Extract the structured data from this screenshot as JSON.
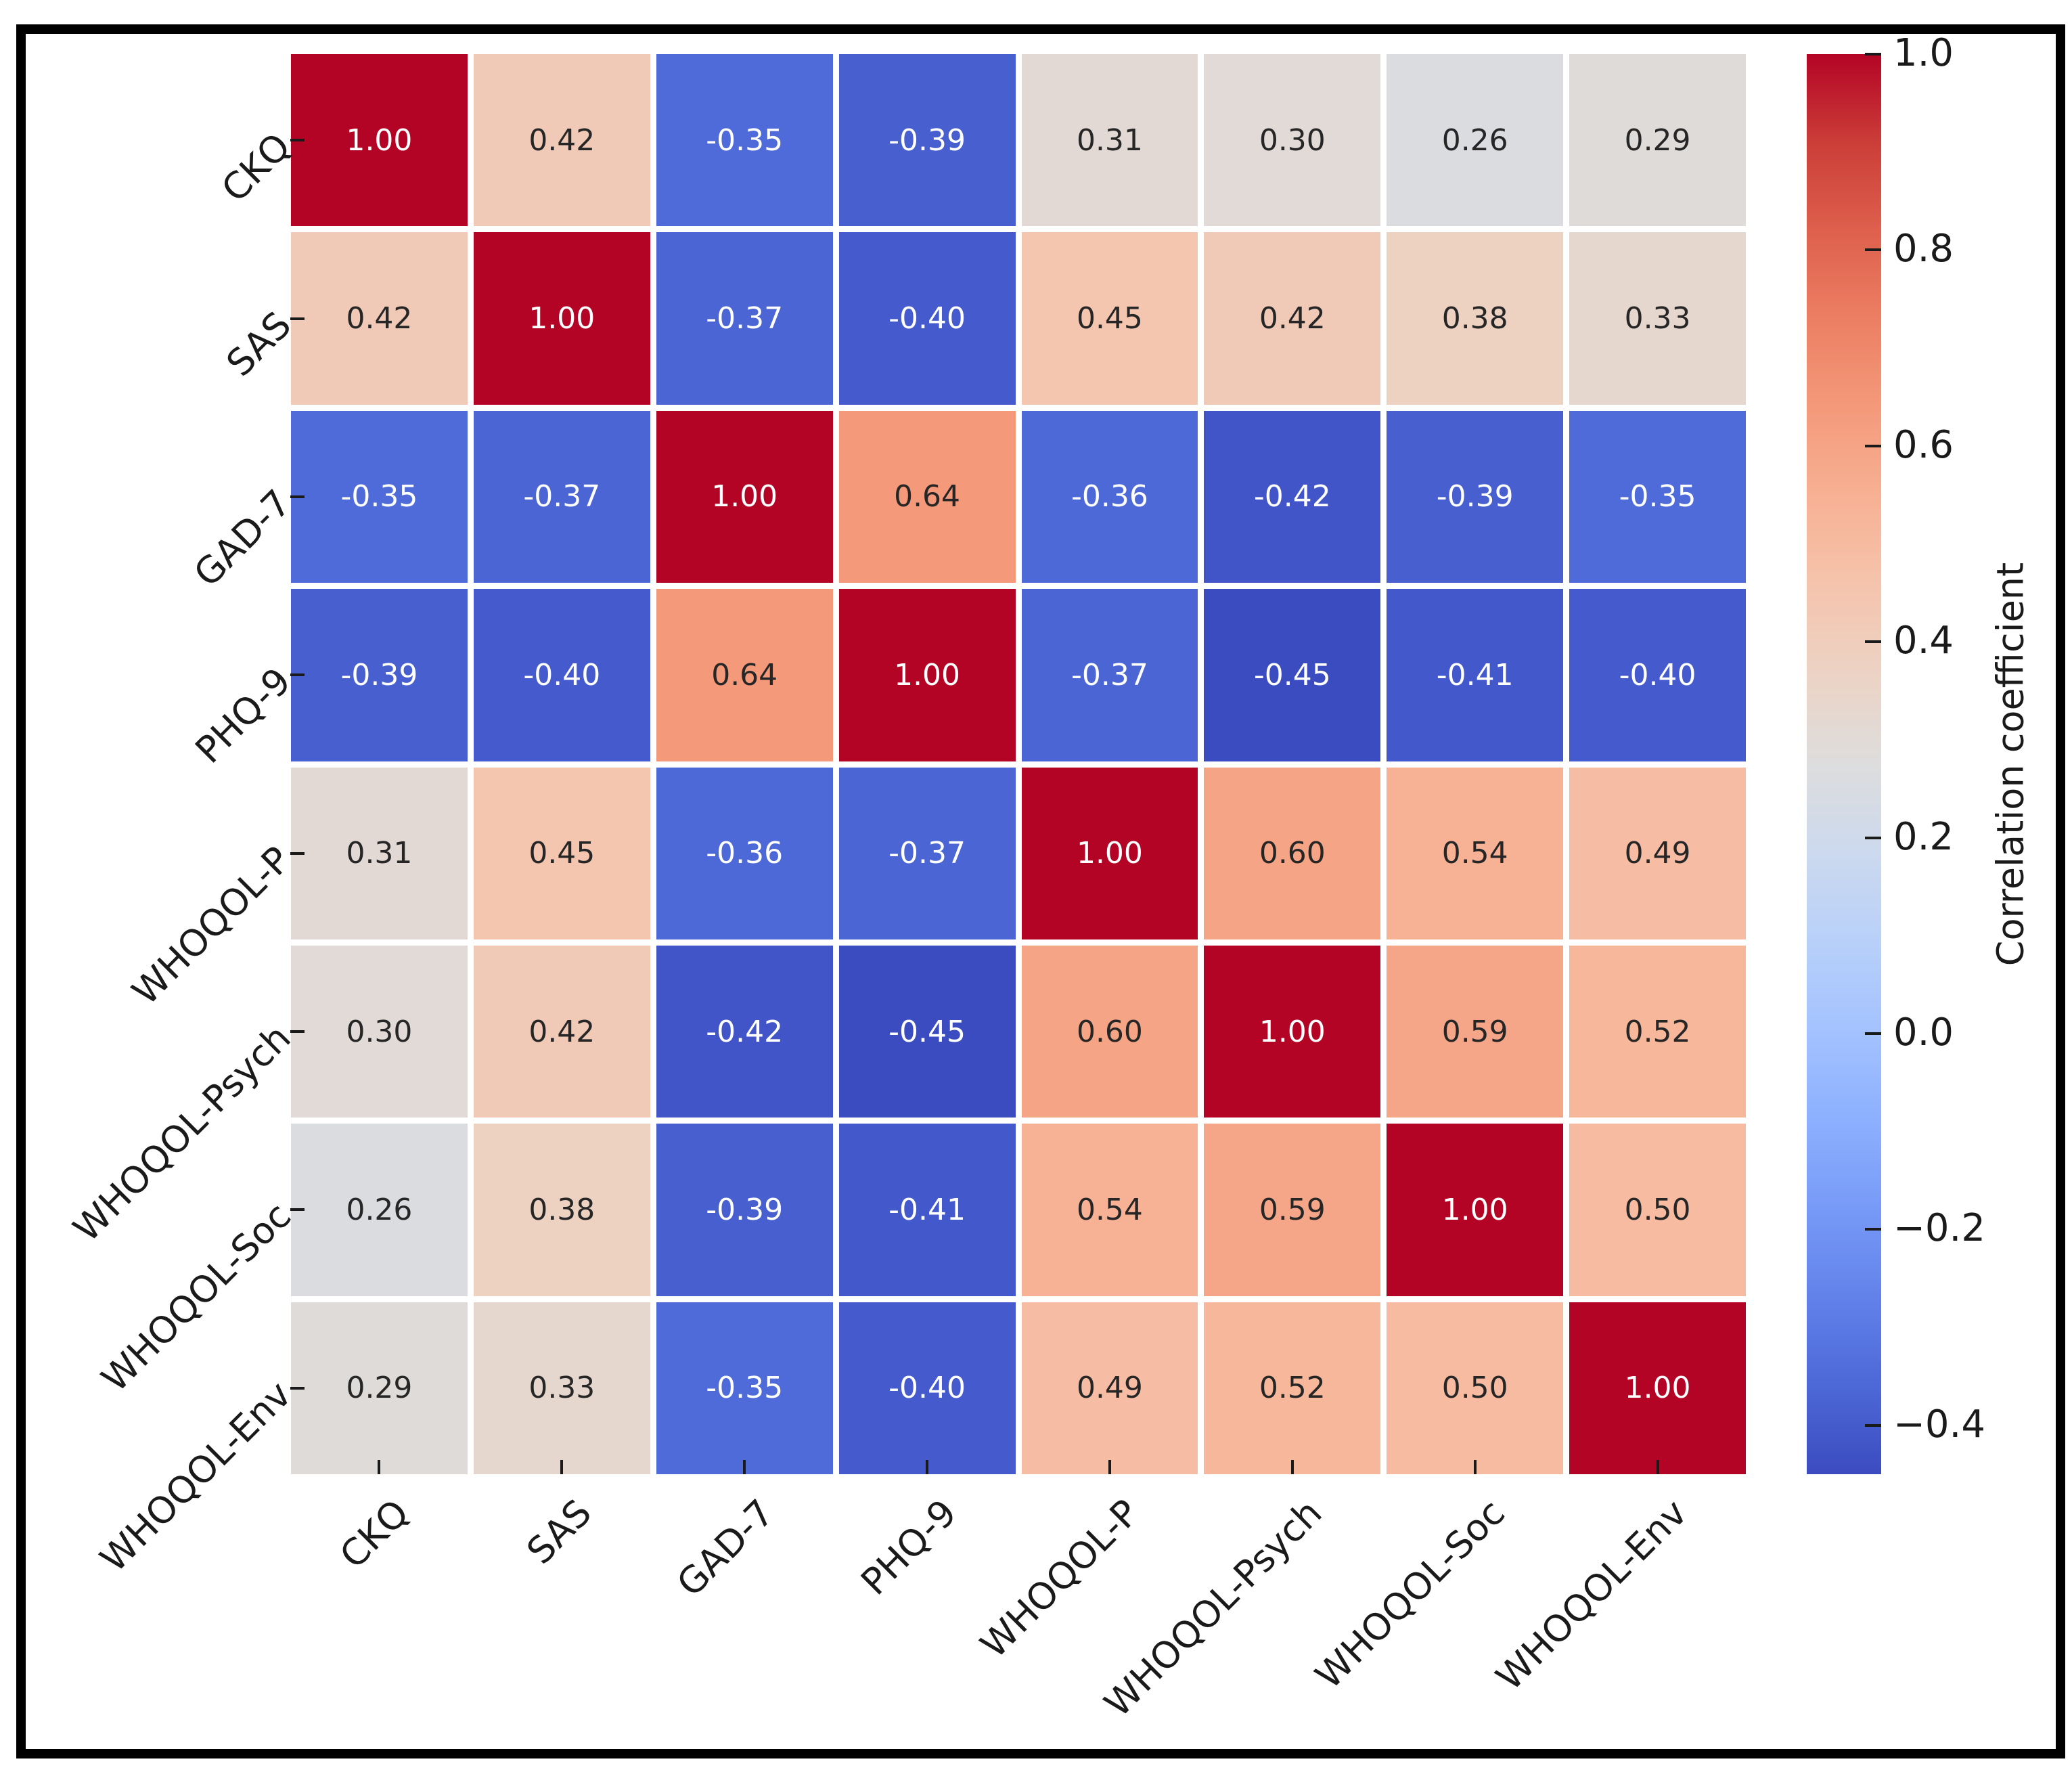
{
  "chart_data": {
    "type": "heatmap",
    "title": "",
    "labels": [
      "CKQ",
      "SAS",
      "GAD-7",
      "PHQ-9",
      "WHOQOL-P",
      "WHOQOL-Psych",
      "WHOQOL-Soc",
      "WHOQOL-Env"
    ],
    "matrix": [
      [
        1.0,
        0.42,
        -0.35,
        -0.39,
        0.31,
        0.3,
        0.26,
        0.29
      ],
      [
        0.42,
        1.0,
        -0.37,
        -0.4,
        0.45,
        0.42,
        0.38,
        0.33
      ],
      [
        -0.35,
        -0.37,
        1.0,
        0.64,
        -0.36,
        -0.42,
        -0.39,
        -0.35
      ],
      [
        -0.39,
        -0.4,
        0.64,
        1.0,
        -0.37,
        -0.45,
        -0.41,
        -0.4
      ],
      [
        0.31,
        0.45,
        -0.36,
        -0.37,
        1.0,
        0.6,
        0.54,
        0.49
      ],
      [
        0.3,
        0.42,
        -0.42,
        -0.45,
        0.6,
        1.0,
        0.59,
        0.52
      ],
      [
        0.26,
        0.38,
        -0.39,
        -0.41,
        0.54,
        0.59,
        1.0,
        0.5
      ],
      [
        0.29,
        0.33,
        -0.35,
        -0.4,
        0.49,
        0.52,
        0.5,
        1.0
      ]
    ],
    "vmin": -0.45,
    "vmax": 1.0,
    "colormap": "coolwarm",
    "annotation_decimals": 2,
    "grid_line_color": "#ffffff",
    "annotation_dark_color": "#262626",
    "annotation_light_color": "#ffffff",
    "colorbar": {
      "label": "Correlation coefficient",
      "ticks": [
        {
          "value": 1.0,
          "label": "1.0"
        },
        {
          "value": 0.8,
          "label": "0.8"
        },
        {
          "value": 0.6,
          "label": "0.6"
        },
        {
          "value": 0.4,
          "label": "0.4"
        },
        {
          "value": 0.2,
          "label": "0.2"
        },
        {
          "value": 0.0,
          "label": "0.0"
        },
        {
          "value": -0.2,
          "label": "−0.2"
        },
        {
          "value": -0.4,
          "label": "−0.4"
        }
      ]
    }
  }
}
